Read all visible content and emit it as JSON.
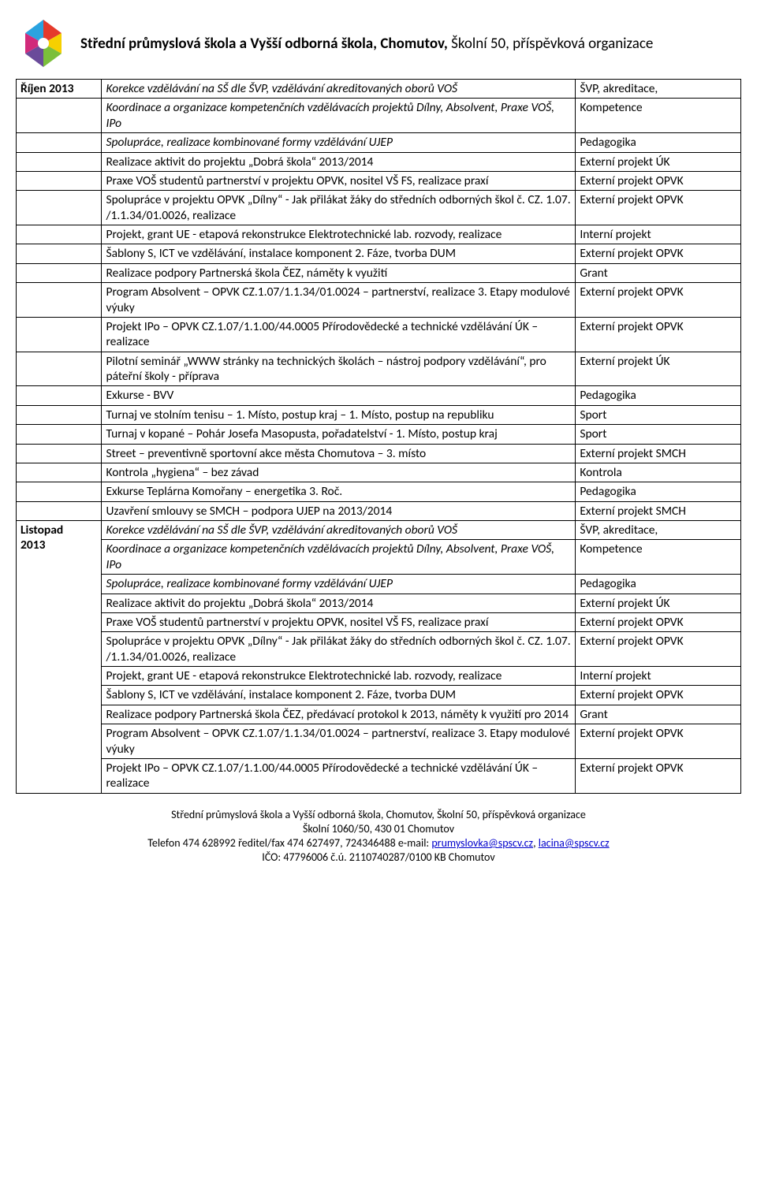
{
  "header": {
    "title_bold": "Střední průmyslová škola a Vyšší odborná škola, Chomutov,",
    "title_rest": " Školní 50, příspěvková organizace"
  },
  "logo": {
    "colors": [
      "#2aa3e0",
      "#e53a2c",
      "#f6d000",
      "#7bbf3b",
      "#6a4b9a",
      "#d12a7a"
    ]
  },
  "months": {
    "oct": "Říjen 2013",
    "nov_a": "Listopad",
    "nov_b": "2013"
  },
  "rows_oct": [
    {
      "desc_i": "Korekce vzdělávání na SŠ dle ŠVP, vzdělávání akreditovaných oborů VOŠ",
      "tag": "ŠVP, akreditace,"
    },
    {
      "desc_i": "Koordinace a organizace kompetenčních vzdělávacích projektů   Dílny, Absolvent, Praxe VOŠ, IPo",
      "tag": "Kompetence"
    },
    {
      "desc_i": "Spolupráce, realizace kombinované formy vzdělávání UJEP",
      "tag": "Pedagogika"
    },
    {
      "desc": "Realizace aktivit do  projektu „Dobrá škola“ 2013/2014",
      "tag": "Externí projekt ÚK"
    },
    {
      "desc": "Praxe VOŠ studentů  partnerství v projektu OPVK, nositel VŠ FS, realizace praxí",
      "tag": "Externí projekt OPVK"
    },
    {
      "desc": "Spolupráce v projektu OPVK „Dílny“ - Jak přilákat žáky do středních odborných škol č. CZ. 1.07. /1.1.34/01.0026, realizace",
      "tag": "Externí projekt OPVK"
    },
    {
      "desc": "Projekt, grant UE - etapová rekonstrukce Elektrotechnické lab.   rozvody, realizace",
      "tag": "Interní projekt"
    },
    {
      "desc": "Šablony S,  ICT ve vzdělávání,  instalace komponent 2. Fáze, tvorba DUM",
      "tag": "Externí projekt OPVK"
    },
    {
      "desc": "Realizace podpory Partnerská škola ČEZ, náměty k využití",
      "tag": "Grant"
    },
    {
      "desc": "Program Absolvent – OPVK CZ.1.07/1.1.34/01.0024 – partnerství, realizace 3. Etapy modulové výuky",
      "tag": "Externí projekt OPVK"
    },
    {
      "desc": "Projekt    IPo    –    OPVK    CZ.1.07/1.1.00/44.0005 Přírodovědecké a technické vzdělávání ÚK – realizace",
      "tag": "Externí projekt OPVK"
    },
    {
      "desc": "Pilotní seminář „WWW stránky na technických školách – nástroj podpory vzdělávání“,  pro páteřní školy - příprava",
      "tag": "Externí projekt ÚK"
    },
    {
      "desc": "Exkurse - BVV",
      "tag": "Pedagogika"
    },
    {
      "desc": "Turnaj ve stolním tenisu – 1. Místo, postup kraj – 1. Místo, postup na republiku",
      "tag": "Sport"
    },
    {
      "desc": "Turnaj v kopané – Pohár Josefa Masopusta, pořadatelství - 1. Místo, postup kraj",
      "tag": "Sport"
    },
    {
      "desc": "Street – preventivně sportovní akce města Chomutova – 3. místo",
      "tag": "Externí projekt SMCH"
    },
    {
      "desc": "Kontrola „hygiena“ – bez závad",
      "tag": "Kontrola"
    },
    {
      "desc": "Exkurse Teplárna Komořany – energetika 3. Roč.",
      "tag": "Pedagogika"
    },
    {
      "desc": "Uzavření  smlouvy  se  SMCH  –  podpora  UJEP  na 2013/2014",
      "tag": "Externí projekt SMCH"
    }
  ],
  "rows_nov": [
    {
      "desc_i": "Korekce vzdělávání na SŠ dle ŠVP, vzdělávání akreditovaných oborů VOŠ",
      "tag": "ŠVP, akreditace,"
    },
    {
      "desc_i": "Koordinace a organizace kompetenčních vzdělávacích projektů   Dílny, Absolvent, Praxe VOŠ, IPo",
      "tag": "Kompetence"
    },
    {
      "desc_i": "Spolupráce, realizace kombinované formy vzdělávání UJEP",
      "tag": "Pedagogika"
    },
    {
      "desc": "Realizace aktivit do  projektu „Dobrá škola“ 2013/2014",
      "tag": "Externí projekt ÚK"
    },
    {
      "desc": "Praxe VOŠ studentů  partnerství v projektu OPVK, nositel VŠ FS, realizace praxí",
      "tag": "Externí projekt OPVK"
    },
    {
      "desc": "Spolupráce v projektu OPVK „Dílny“ - Jak přilákat žáky do středních odborných škol č. CZ. 1.07. /1.1.34/01.0026, realizace",
      "tag": "Externí projekt OPVK"
    },
    {
      "desc": "Projekt, grant UE - etapová rekonstrukce Elektrotechnické lab.   rozvody, realizace",
      "tag": "Interní projekt"
    },
    {
      "desc": "Šablony S,  ICT ve vzdělávání,  instalace komponent 2. Fáze, tvorba DUM",
      "tag": "Externí projekt OPVK"
    },
    {
      "desc": "Realizace podpory Partnerská škola ČEZ, předávací protokol k 2013, náměty k využití pro 2014",
      "tag": "Grant"
    },
    {
      "desc": "Program Absolvent – OPVK CZ.1.07/1.1.34/01.0024 – partnerství, realizace 3. Etapy modulové výuky",
      "tag": "Externí projekt OPVK"
    },
    {
      "desc": "Projekt    IPo    –    OPVK    CZ.1.07/1.1.00/44.0005 Přírodovědecké a technické vzdělávání ÚK –  realizace",
      "tag": "Externí projekt OPVK"
    }
  ],
  "footer": {
    "line1": "Střední průmyslová škola a Vyšší odborná škola, Chomutov, Školní 50, příspěvková organizace",
    "line2": "Školní 1060/50, 430 01 Chomutov",
    "line3a": "Telefon 474 628992  ředitel/fax 474 627497, 724346488 e-mail: ",
    "email1": "prumyslovka@spscv.cz",
    "sep": ", ",
    "email2": "lacina@spscv.cz",
    "line4": "IČO: 47796006    č.ú. 2110740287/0100 KB Chomutov"
  }
}
